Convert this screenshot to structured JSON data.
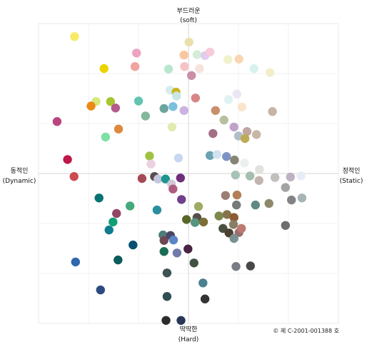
{
  "chart_data": {
    "type": "scatter",
    "title": "",
    "axis_labels": {
      "top_line1": "부드러운",
      "top_line2": "(soft)",
      "bottom_line1": "딱딱한",
      "bottom_line2": "(Hard)",
      "left_line1": "동적인",
      "left_line2": "(Dynamic)",
      "right_line1": "정적인",
      "right_line2": "(Static)"
    },
    "copyright": "© 제 C-2001-001388 호",
    "xlim": [
      -3,
      3
    ],
    "ylim": [
      -3,
      3
    ],
    "grid": true,
    "points": [
      {
        "x": -2.28,
        "y": 2.74,
        "color": "#f7eb66"
      },
      {
        "x": -1.04,
        "y": 2.41,
        "color": "#eda3c2"
      },
      {
        "x": -1.69,
        "y": 2.1,
        "color": "#ebd400"
      },
      {
        "x": -1.07,
        "y": 2.14,
        "color": "#f1a3a0"
      },
      {
        "x": -0.4,
        "y": 2.09,
        "color": "#b9e7ce"
      },
      {
        "x": 0.01,
        "y": 2.63,
        "color": "#ebdfb0"
      },
      {
        "x": -0.09,
        "y": 2.37,
        "color": "#f9c7a0"
      },
      {
        "x": 0.17,
        "y": 2.38,
        "color": "#d5ecd6"
      },
      {
        "x": 0.33,
        "y": 2.36,
        "color": "#e1ccef"
      },
      {
        "x": 0.43,
        "y": 2.43,
        "color": "#f8cbd8"
      },
      {
        "x": 0.79,
        "y": 2.28,
        "color": "#f1f2c9"
      },
      {
        "x": 1.01,
        "y": 2.29,
        "color": "#f9d6b3"
      },
      {
        "x": 1.31,
        "y": 2.1,
        "color": "#d7f2ec"
      },
      {
        "x": 1.63,
        "y": 2.02,
        "color": "#f3edcc"
      },
      {
        "x": -0.08,
        "y": 2.14,
        "color": "#f6c3c5"
      },
      {
        "x": 0.22,
        "y": 2.1,
        "color": "#f7e3dc"
      },
      {
        "x": 0.06,
        "y": 1.96,
        "color": "#c98fa6"
      },
      {
        "x": -0.37,
        "y": 1.67,
        "color": "#d6edee"
      },
      {
        "x": -0.25,
        "y": 1.63,
        "color": "#cfb51f"
      },
      {
        "x": -0.24,
        "y": 1.55,
        "color": "#c6e7e6"
      },
      {
        "x": -1.85,
        "y": 1.44,
        "color": "#d7e87c"
      },
      {
        "x": -1.56,
        "y": 1.44,
        "color": "#a4c731"
      },
      {
        "x": -1.95,
        "y": 1.35,
        "color": "#ea8a14"
      },
      {
        "x": -1.46,
        "y": 1.31,
        "color": "#b55b89"
      },
      {
        "x": -1.0,
        "y": 1.45,
        "color": "#62c5b2"
      },
      {
        "x": -0.49,
        "y": 1.3,
        "color": "#6ca59e"
      },
      {
        "x": -0.31,
        "y": 1.34,
        "color": "#7bc0de"
      },
      {
        "x": -0.09,
        "y": 1.26,
        "color": "#cbb2e4"
      },
      {
        "x": 0.14,
        "y": 1.51,
        "color": "#d78586"
      },
      {
        "x": 0.8,
        "y": 1.48,
        "color": "#e0f1f2"
      },
      {
        "x": 0.97,
        "y": 1.59,
        "color": "#ece6f4"
      },
      {
        "x": 1.07,
        "y": 1.33,
        "color": "#fbe4cd"
      },
      {
        "x": 0.54,
        "y": 1.26,
        "color": "#c98f6c"
      },
      {
        "x": 1.68,
        "y": 1.24,
        "color": "#c8b3a6"
      },
      {
        "x": -2.63,
        "y": 1.04,
        "color": "#b94580"
      },
      {
        "x": -0.86,
        "y": 1.15,
        "color": "#82b89b"
      },
      {
        "x": -1.4,
        "y": 0.89,
        "color": "#dd8a3e"
      },
      {
        "x": -1.66,
        "y": 0.73,
        "color": "#7de0a4"
      },
      {
        "x": -0.33,
        "y": 0.93,
        "color": "#e3eab0"
      },
      {
        "x": 0.71,
        "y": 1.07,
        "color": "#b6c0a0"
      },
      {
        "x": 0.91,
        "y": 0.93,
        "color": "#bfa2ca"
      },
      {
        "x": 1.17,
        "y": 0.84,
        "color": "#c0a5a0"
      },
      {
        "x": 1.36,
        "y": 0.78,
        "color": "#c8b7a5"
      },
      {
        "x": 0.49,
        "y": 0.8,
        "color": "#a36f85"
      },
      {
        "x": 1.0,
        "y": 0.75,
        "color": "#b0bfc7"
      },
      {
        "x": 1.13,
        "y": 0.7,
        "color": "#bfaa58"
      },
      {
        "x": -2.42,
        "y": 0.28,
        "color": "#c0174a"
      },
      {
        "x": -0.78,
        "y": 0.35,
        "color": "#a0c243"
      },
      {
        "x": -0.75,
        "y": 0.19,
        "color": "#ecd1df"
      },
      {
        "x": -0.2,
        "y": 0.31,
        "color": "#c7d7ef"
      },
      {
        "x": 0.43,
        "y": 0.36,
        "color": "#6aa4b1"
      },
      {
        "x": 0.57,
        "y": 0.38,
        "color": "#d1e1f1"
      },
      {
        "x": 0.76,
        "y": 0.34,
        "color": "#7e93c5"
      },
      {
        "x": 0.92,
        "y": 0.27,
        "color": "#868574"
      },
      {
        "x": 1.12,
        "y": 0.21,
        "color": "#edf0f0"
      },
      {
        "x": 1.42,
        "y": 0.08,
        "color": "#e1e2dd"
      },
      {
        "x": -2.29,
        "y": -0.06,
        "color": "#cc4a4f"
      },
      {
        "x": -0.93,
        "y": -0.1,
        "color": "#a44b56"
      },
      {
        "x": -0.68,
        "y": -0.06,
        "color": "#5a4e4c"
      },
      {
        "x": -0.61,
        "y": -0.11,
        "color": "#c3c7df"
      },
      {
        "x": -0.46,
        "y": -0.11,
        "color": "#1d968f"
      },
      {
        "x": -0.34,
        "y": -0.21,
        "color": "#d0c8d8"
      },
      {
        "x": -0.16,
        "y": -0.09,
        "color": "#6e2e7c"
      },
      {
        "x": 0.94,
        "y": -0.03,
        "color": "#a7c3b6"
      },
      {
        "x": 1.23,
        "y": -0.05,
        "color": "#a4beaf"
      },
      {
        "x": 1.41,
        "y": -0.14,
        "color": "#c2b5b1"
      },
      {
        "x": 1.73,
        "y": -0.08,
        "color": "#c0bfbd"
      },
      {
        "x": 2.04,
        "y": -0.07,
        "color": "#bfb1c3"
      },
      {
        "x": 2.25,
        "y": -0.05,
        "color": "#e7edf8"
      },
      {
        "x": 1.94,
        "y": -0.28,
        "color": "#a3a3a3"
      },
      {
        "x": -0.31,
        "y": -0.31,
        "color": "#ae5d80"
      },
      {
        "x": -0.14,
        "y": -0.52,
        "color": "#6f418a"
      },
      {
        "x": 0.74,
        "y": -0.44,
        "color": "#9a7f74"
      },
      {
        "x": 0.97,
        "y": -0.43,
        "color": "#b27f56"
      },
      {
        "x": 2.06,
        "y": -0.53,
        "color": "#838385"
      },
      {
        "x": 2.27,
        "y": -0.49,
        "color": "#a7b3b4"
      },
      {
        "x": -1.79,
        "y": -0.49,
        "color": "#067470"
      },
      {
        "x": -1.17,
        "y": -0.65,
        "color": "#46a87c"
      },
      {
        "x": -0.63,
        "y": -0.73,
        "color": "#2b8f9f"
      },
      {
        "x": 0.2,
        "y": -0.66,
        "color": "#9eab62"
      },
      {
        "x": 0.96,
        "y": -0.63,
        "color": "#757b79"
      },
      {
        "x": 1.34,
        "y": -0.63,
        "color": "#608a83"
      },
      {
        "x": 1.61,
        "y": -0.6,
        "color": "#8b896a"
      },
      {
        "x": -1.44,
        "y": -0.8,
        "color": "#934563"
      },
      {
        "x": -1.51,
        "y": -0.97,
        "color": "#0f9f76"
      },
      {
        "x": -1.59,
        "y": -1.13,
        "color": "#0e7d8d"
      },
      {
        "x": -0.04,
        "y": -0.92,
        "color": "#5a6628"
      },
      {
        "x": 0.17,
        "y": -0.88,
        "color": "#574e4b"
      },
      {
        "x": 0.13,
        "y": -0.98,
        "color": "#56957f"
      },
      {
        "x": 0.3,
        "y": -0.97,
        "color": "#7b6f36"
      },
      {
        "x": 0.61,
        "y": -0.85,
        "color": "#7d884e"
      },
      {
        "x": 0.77,
        "y": -0.82,
        "color": "#87734b"
      },
      {
        "x": 0.91,
        "y": -0.88,
        "color": "#8c5b33"
      },
      {
        "x": 0.9,
        "y": -1.02,
        "color": "#877f66"
      },
      {
        "x": 0.69,
        "y": -1.1,
        "color": "#48513d"
      },
      {
        "x": 0.81,
        "y": -1.19,
        "color": "#4d4032"
      },
      {
        "x": 1.01,
        "y": -1.18,
        "color": "#966f6d"
      },
      {
        "x": 1.06,
        "y": -1.1,
        "color": "#be7a6f"
      },
      {
        "x": 1.94,
        "y": -1.04,
        "color": "#6d6e6b"
      },
      {
        "x": -0.51,
        "y": -1.23,
        "color": "#4c7d79"
      },
      {
        "x": -0.49,
        "y": -1.34,
        "color": "#6d4955"
      },
      {
        "x": -0.36,
        "y": -1.24,
        "color": "#4c4565"
      },
      {
        "x": -0.3,
        "y": -1.33,
        "color": "#5b84c6"
      },
      {
        "x": 0.91,
        "y": -1.3,
        "color": "#779195"
      },
      {
        "x": -1.11,
        "y": -1.43,
        "color": "#084f72"
      },
      {
        "x": -0.49,
        "y": -1.56,
        "color": "#196e54"
      },
      {
        "x": -0.23,
        "y": -1.59,
        "color": "#727aa9"
      },
      {
        "x": -0.01,
        "y": -1.51,
        "color": "#4b2344"
      },
      {
        "x": -2.26,
        "y": -1.77,
        "color": "#2f67ae"
      },
      {
        "x": -1.41,
        "y": -1.73,
        "color": "#0b5b58"
      },
      {
        "x": 0.11,
        "y": -1.79,
        "color": "#3f5344"
      },
      {
        "x": 0.95,
        "y": -1.86,
        "color": "#787d86"
      },
      {
        "x": 1.24,
        "y": -1.85,
        "color": "#494848"
      },
      {
        "x": -0.43,
        "y": -1.99,
        "color": "#3d5354"
      },
      {
        "x": 0.29,
        "y": -2.19,
        "color": "#4a8090"
      },
      {
        "x": -1.76,
        "y": -2.33,
        "color": "#2c4a7f"
      },
      {
        "x": -0.43,
        "y": -2.46,
        "color": "#2f4d55"
      },
      {
        "x": 0.33,
        "y": -2.51,
        "color": "#343434"
      },
      {
        "x": -0.45,
        "y": -2.94,
        "color": "#2c2c2c"
      },
      {
        "x": -0.15,
        "y": -2.94,
        "color": "#283758"
      }
    ]
  }
}
